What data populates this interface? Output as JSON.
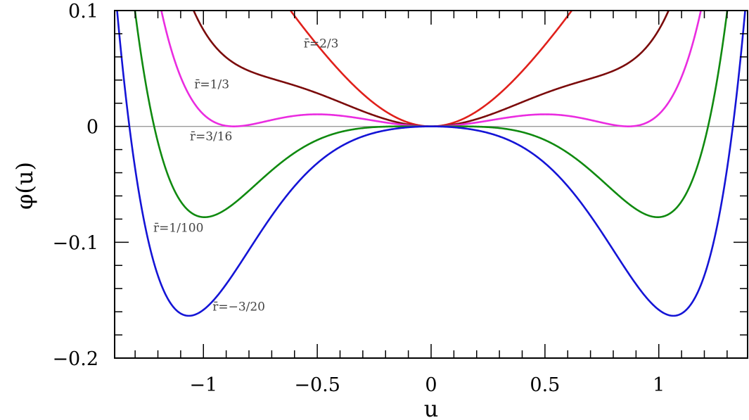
{
  "chart_data": {
    "type": "line",
    "xlabel": "u",
    "ylabel": "φ(u)",
    "xlim": [
      -1.39,
      1.39
    ],
    "ylim": [
      -0.2,
      0.1
    ],
    "x_ticks": [
      {
        "value": -1,
        "label": "−1"
      },
      {
        "value": -0.5,
        "label": "−0.5"
      },
      {
        "value": 0,
        "label": "0"
      },
      {
        "value": 0.5,
        "label": "0.5"
      },
      {
        "value": 1,
        "label": "1"
      }
    ],
    "y_ticks": [
      {
        "value": -0.2,
        "label": "−0.2"
      },
      {
        "value": -0.1,
        "label": "−0.1"
      },
      {
        "value": 0,
        "label": "0"
      },
      {
        "value": 0.1,
        "label": "0.1"
      }
    ],
    "x_minor_step": 0.1,
    "y_minor_step": 0.02,
    "zero_line": true,
    "grid": false,
    "series": [
      {
        "name": "r̄=2/3",
        "r": 0.6666667,
        "color": "#e0201b",
        "label": {
          "text": "r̄=2/3",
          "x": -0.56,
          "y": 0.068
        }
      },
      {
        "name": "r̄=1/3",
        "r": 0.3333333,
        "color": "#7b0b0b",
        "label": {
          "text": "r̄=1/3",
          "x": -1.04,
          "y": 0.033
        }
      },
      {
        "name": "r̄=3/16",
        "r": 0.1875,
        "color": "#ea2ce0",
        "label": {
          "text": "r̄=3/16",
          "x": -1.06,
          "y": -0.012
        }
      },
      {
        "name": "r̄=1/100",
        "r": 0.01,
        "color": "#108a10",
        "label": {
          "text": "r̄=1/100",
          "x": -1.22,
          "y": -0.091
        }
      },
      {
        "name": "r̄=−3/20",
        "r": -0.15,
        "color": "#1414d6",
        "label": {
          "text": "r̄=−3/20",
          "x": -0.96,
          "y": -0.159
        }
      }
    ]
  }
}
